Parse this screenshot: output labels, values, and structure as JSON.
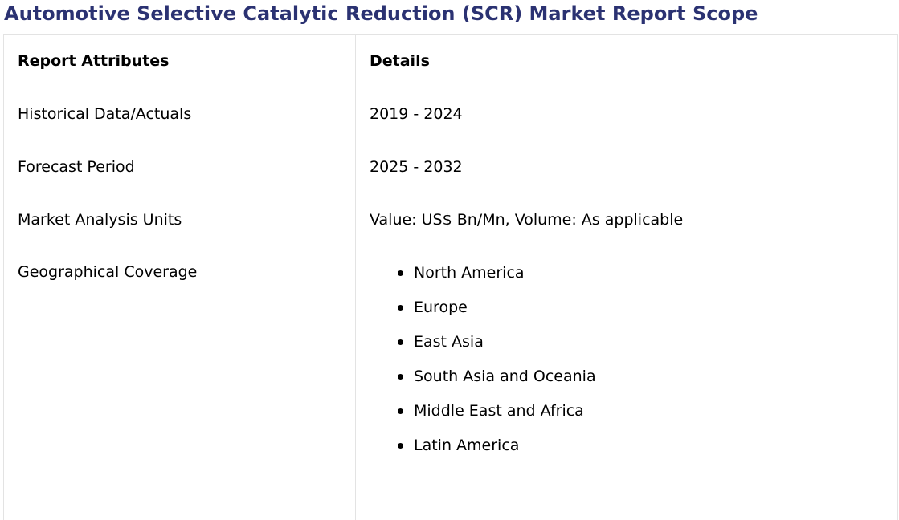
{
  "title": "Automotive Selective Catalytic Reduction (SCR) Market Report Scope",
  "colors": {
    "title": "#2b3272",
    "border": "#e3e3e3",
    "text": "#000000"
  },
  "table": {
    "headers": [
      "Report Attributes",
      "Details"
    ],
    "rows": [
      {
        "attribute": "Historical Data/Actuals",
        "detail": "2019 - 2024"
      },
      {
        "attribute": "Forecast Period",
        "detail": "2025 - 2032"
      },
      {
        "attribute": "Market Analysis Units",
        "detail": "Value: US$ Bn/Mn, Volume: As applicable"
      }
    ],
    "geo": {
      "attribute": "Geographical Coverage",
      "regions": [
        "North America",
        "Europe",
        "East Asia",
        "South Asia and Oceania",
        "Middle East and Africa",
        "Latin America"
      ]
    }
  }
}
